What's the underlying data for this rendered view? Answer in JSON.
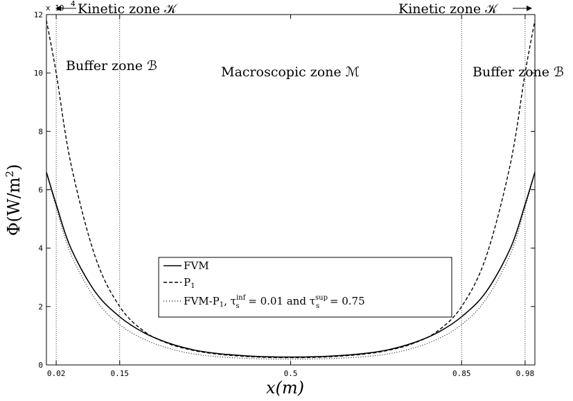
{
  "chart_data": {
    "type": "line",
    "xlabel": "x(m)",
    "ylabel": "Φ(W/m²)",
    "xlim": [
      0,
      1
    ],
    "ylim": [
      0,
      120000
    ],
    "y_exponent_label": "x 10",
    "y_exponent_power": "4",
    "x_ticks": [
      0.02,
      0.15,
      0.5,
      0.85,
      0.98
    ],
    "y_ticks": [
      0,
      20000,
      40000,
      60000,
      80000,
      100000,
      120000
    ],
    "y_tick_labels": [
      "0",
      "2",
      "4",
      "6",
      "8",
      "10",
      "12"
    ],
    "x_tick_labels": [
      "0.02",
      "0.15",
      "0.5",
      "0.85",
      "0.98"
    ],
    "vertical_lines": [
      0.02,
      0.15,
      0.85,
      0.98
    ],
    "legend_position": "lower-center",
    "annotations": [
      {
        "text": "Kinetic zone 𝒦",
        "side": "left",
        "arrow": "left"
      },
      {
        "text": "Kinetic zone 𝒦",
        "side": "right",
        "arrow": "right"
      },
      {
        "text": "Buffer zone ℬ",
        "side": "left"
      },
      {
        "text": "Macroscopic zone ℳ",
        "side": "center"
      },
      {
        "text": "Buffer zone ℬ",
        "side": "right"
      }
    ],
    "series": [
      {
        "name": "FVM",
        "style": "solid",
        "x": [
          0,
          0.02,
          0.05,
          0.1,
          0.15,
          0.2,
          0.25,
          0.3,
          0.35,
          0.4,
          0.45,
          0.5,
          0.55,
          0.6,
          0.65,
          0.7,
          0.75,
          0.8,
          0.85,
          0.9,
          0.95,
          0.98,
          1.0
        ],
        "y": [
          66000,
          55000,
          40000,
          25000,
          16500,
          11000,
          7500,
          5200,
          3900,
          3200,
          2800,
          2700,
          2800,
          3200,
          3900,
          5200,
          7500,
          11000,
          16500,
          25000,
          40000,
          55000,
          66000
        ]
      },
      {
        "name": "P₁",
        "style": "dashed",
        "x": [
          0,
          0.02,
          0.05,
          0.1,
          0.15,
          0.2,
          0.25,
          0.3,
          0.35,
          0.4,
          0.45,
          0.5,
          0.55,
          0.6,
          0.65,
          0.7,
          0.75,
          0.8,
          0.85,
          0.9,
          0.95,
          0.98,
          1.0
        ],
        "y": [
          118000,
          100000,
          69000,
          37000,
          20000,
          11500,
          7300,
          5000,
          3700,
          3000,
          2600,
          2500,
          2600,
          3000,
          3700,
          5000,
          7300,
          11500,
          20000,
          37000,
          69000,
          100000,
          118000
        ]
      },
      {
        "name": "FVM-P₁",
        "style": "dotted",
        "x": [
          0,
          0.02,
          0.05,
          0.1,
          0.15,
          0.2,
          0.25,
          0.3,
          0.35,
          0.4,
          0.45,
          0.5,
          0.55,
          0.6,
          0.65,
          0.7,
          0.75,
          0.8,
          0.85,
          0.9,
          0.95,
          0.98,
          1.0
        ],
        "y": [
          66000,
          54000,
          38000,
          22500,
          13800,
          8800,
          5700,
          3800,
          2800,
          2300,
          2050,
          2000,
          2050,
          2300,
          2800,
          3800,
          5700,
          8800,
          13800,
          22500,
          38000,
          54000,
          66000
        ]
      }
    ],
    "legend_entries": [
      {
        "label": "FVM",
        "style": "solid"
      },
      {
        "label": "P₁",
        "style": "dashed"
      },
      {
        "label": "FVM-P₁, τ_s^inf = 0.01 and τ_s^sup = 0.75",
        "style": "dotted"
      }
    ]
  },
  "legend": {
    "fvm": "FVM",
    "p1": "P",
    "p1_sub": "1",
    "fvmp1_a": "FVM-P",
    "fvmp1_sub1": "1",
    "fvmp1_b": ", τ",
    "fvmp1_sub_s1": "s",
    "fvmp1_sup_inf": "inf",
    "fvmp1_c": " = 0.01 and τ",
    "fvmp1_sub_s2": "s",
    "fvmp1_sup_sup": "sup",
    "fvmp1_d": " = 0.75"
  },
  "labels": {
    "kinetic_left": "Kinetic zone 𝒦",
    "kinetic_right": "Kinetic zone 𝒦",
    "buffer_left": "Buffer zone ℬ",
    "macro": "Macroscopic zone ℳ",
    "buffer_right": "Buffer zone ℬ",
    "xlabel": "x(m)",
    "ylabel_main": "Φ(W/m",
    "ylabel_sup": "2",
    "ylabel_end": ")"
  }
}
